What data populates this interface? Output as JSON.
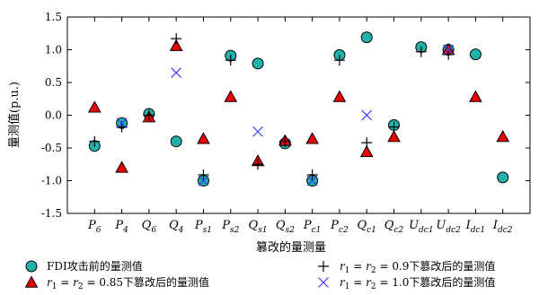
{
  "chart_data": {
    "type": "scatter",
    "xlabel": "篡改的量测量",
    "ylabel": "量测值(p.u.)",
    "ylim": [
      -1.5,
      1.5
    ],
    "yticks": [
      "1.5",
      "1.0",
      "0.5",
      "0.0",
      "-0.5",
      "-1.0",
      "-1.5"
    ],
    "grid": false,
    "legend_position": "bottom",
    "categories": [
      {
        "base": "P",
        "sub": "6"
      },
      {
        "base": "P",
        "sub": "4"
      },
      {
        "base": "Q",
        "sub": "6"
      },
      {
        "base": "Q",
        "sub": "4"
      },
      {
        "base": "P",
        "sub": "s1"
      },
      {
        "base": "P",
        "sub": "s2"
      },
      {
        "base": "Q",
        "sub": "s1"
      },
      {
        "base": "Q",
        "sub": "s2"
      },
      {
        "base": "P",
        "sub": "c1"
      },
      {
        "base": "P",
        "sub": "c2"
      },
      {
        "base": "Q",
        "sub": "c1"
      },
      {
        "base": "Q",
        "sub": "c2"
      },
      {
        "base": "U",
        "sub": "dc1"
      },
      {
        "base": "U",
        "sub": "dc2"
      },
      {
        "base": "I",
        "sub": "dc1"
      },
      {
        "base": "I",
        "sub": "dc2"
      }
    ],
    "series": [
      {
        "name": "FDI攻击前的量测值",
        "marker": "circle",
        "color": "#20b2aa",
        "values": [
          -0.47,
          -0.12,
          0.02,
          -0.4,
          -1.0,
          0.91,
          0.79,
          -0.43,
          -1.0,
          0.92,
          1.19,
          -0.15,
          1.04,
          1.0,
          0.93,
          -0.95
        ]
      },
      {
        "name": "r1=r2=0.85下篡改后的量测值",
        "marker": "triangle",
        "color": "#ee0000",
        "values": [
          0.12,
          -0.8,
          -0.03,
          1.06,
          -0.36,
          0.28,
          -0.7,
          -0.39,
          -0.36,
          0.28,
          -0.56,
          -0.33,
          null,
          1.0,
          0.28,
          -0.33
        ]
      },
      {
        "name": "r1=r2=0.9下篡改后的量测值",
        "marker": "plus",
        "color": "#000000",
        "values": [
          -0.4,
          -0.18,
          0.0,
          1.17,
          -0.91,
          0.84,
          -0.75,
          -0.4,
          -0.91,
          0.84,
          -0.42,
          -0.18,
          0.97,
          0.93,
          null,
          null
        ]
      },
      {
        "name": "r1=r2=1.0下篡改后的量测值",
        "marker": "x",
        "color": "#3a3aff",
        "values": [
          null,
          -0.12,
          null,
          0.65,
          -1.0,
          null,
          -0.25,
          null,
          -1.0,
          null,
          0.0,
          null,
          null,
          1.0,
          null,
          null
        ]
      }
    ],
    "legend": [
      {
        "series": 0,
        "parts": [
          {
            "t": "FDI攻击前的量测值",
            "i": false
          }
        ]
      },
      {
        "series": 2,
        "parts": [
          {
            "t": "r",
            "i": true
          },
          {
            "t": "1",
            "sub": true
          },
          {
            "t": " = ",
            "i": false
          },
          {
            "t": "r",
            "i": true
          },
          {
            "t": "2",
            "sub": true
          },
          {
            "t": " = 0.9下篡改后的量测值",
            "i": false
          }
        ]
      },
      {
        "series": 1,
        "parts": [
          {
            "t": "r",
            "i": true
          },
          {
            "t": "1",
            "sub": true
          },
          {
            "t": " = ",
            "i": false
          },
          {
            "t": "r",
            "i": true
          },
          {
            "t": "2",
            "sub": true
          },
          {
            "t": " = 0.85下篡改后的量测值",
            "i": false
          }
        ]
      },
      {
        "series": 3,
        "parts": [
          {
            "t": "r",
            "i": true
          },
          {
            "t": "1",
            "sub": true
          },
          {
            "t": " = ",
            "i": false
          },
          {
            "t": "r",
            "i": true
          },
          {
            "t": "2",
            "sub": true
          },
          {
            "t": " = 1.0下篡改后的量测值",
            "i": false
          }
        ]
      }
    ]
  }
}
